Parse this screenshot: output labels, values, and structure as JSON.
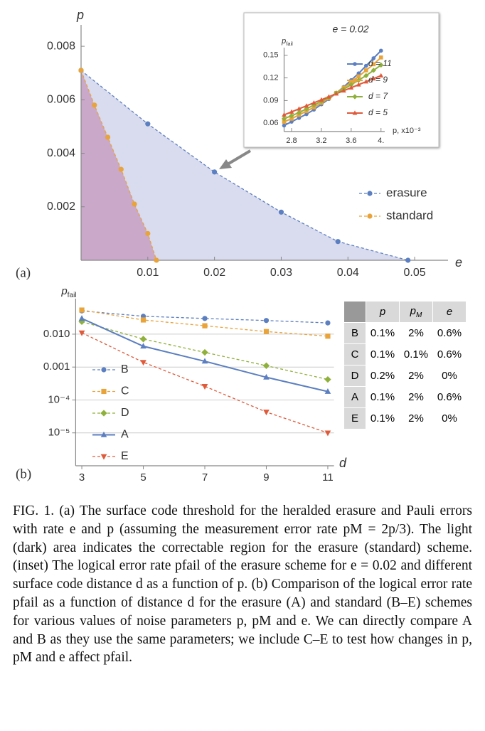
{
  "panel_labels": [
    "(a)",
    "(b)"
  ],
  "chart_data": [
    {
      "type": "area",
      "x_label": "e",
      "y_label": "p",
      "xlim": [
        0,
        0.055
      ],
      "ylim": [
        0,
        0.0088
      ],
      "xticks": [
        0.01,
        0.02,
        0.03,
        0.04,
        0.05
      ],
      "yticks": [
        0.002,
        0.004,
        0.006,
        0.008
      ],
      "legend": "right",
      "series": [
        {
          "name": "erasure",
          "color": "#5b7fc0",
          "fill": "#d9dbef",
          "marker": "circle",
          "dash": true,
          "x": [
            0,
            0.01,
            0.02,
            0.03,
            0.0385,
            0.049
          ],
          "values": [
            0.0071,
            0.0051,
            0.0033,
            0.0018,
            0.0007,
            0
          ]
        },
        {
          "name": "standard",
          "color": "#e8a33a",
          "fill": "#c9a8c9",
          "marker": "circle",
          "dash": true,
          "x": [
            0,
            0.002,
            0.004,
            0.006,
            0.008,
            0.01,
            0.0113
          ],
          "values": [
            0.0071,
            0.0058,
            0.0046,
            0.0034,
            0.0021,
            0.001,
            0
          ]
        }
      ]
    },
    {
      "type": "line",
      "title": "e = 0.02",
      "x_label": "p, x10⁻³",
      "y_label": {
        "base": "p",
        "sub": "fail"
      },
      "x": [
        2.7,
        2.8,
        2.9,
        3.0,
        3.1,
        3.2,
        3.3,
        3.4,
        3.5,
        3.6,
        3.7,
        3.8,
        3.9,
        4.0
      ],
      "xlim": [
        2.7,
        4.05
      ],
      "ylim": [
        0.049,
        0.16
      ],
      "xticks": [
        2.8,
        3.2,
        3.6,
        {
          "value": 4,
          "label": "4."
        }
      ],
      "yticks": [
        0.06,
        0.09,
        0.12,
        0.15
      ],
      "legend": "right",
      "series": [
        {
          "name": "d = 11",
          "color": "#5b7fc0",
          "marker": "circle",
          "dash": false,
          "values": [
            0.057,
            0.062,
            0.067,
            0.072,
            0.078,
            0.085,
            0.092,
            0.1,
            0.108,
            0.117,
            0.126,
            0.136,
            0.146,
            0.156
          ]
        },
        {
          "name": "d = 9",
          "color": "#e8a33a",
          "marker": "square",
          "dash": false,
          "values": [
            0.062,
            0.066,
            0.071,
            0.076,
            0.081,
            0.087,
            0.093,
            0.1,
            0.107,
            0.114,
            0.122,
            0.13,
            0.138,
            0.147
          ]
        },
        {
          "name": "d = 7",
          "color": "#8fb03a",
          "marker": "diamond",
          "dash": false,
          "values": [
            0.066,
            0.07,
            0.074,
            0.079,
            0.084,
            0.089,
            0.094,
            0.1,
            0.105,
            0.111,
            0.117,
            0.123,
            0.13,
            0.137
          ]
        },
        {
          "name": "d = 5",
          "color": "#e05a3a",
          "marker": "triangle",
          "dash": false,
          "values": [
            0.071,
            0.075,
            0.079,
            0.083,
            0.087,
            0.091,
            0.095,
            0.099,
            0.103,
            0.107,
            0.111,
            0.115,
            0.119,
            0.123
          ]
        }
      ]
    },
    {
      "type": "line",
      "yscale": "log",
      "grid": true,
      "x_label": "d",
      "y_label": {
        "base": "p",
        "sub": "fail"
      },
      "x": [
        3,
        5,
        7,
        9,
        11
      ],
      "xticks": [
        3,
        5,
        7,
        9,
        11
      ],
      "xlim": [
        2.8,
        11.2
      ],
      "ylim": [
        1e-06,
        0.12
      ],
      "yticks": [
        {
          "value": 0.01,
          "label": "0.010"
        },
        0.001,
        {
          "value": 0.0001,
          "label": "10⁻⁴"
        },
        {
          "value": 1e-05,
          "label": "10⁻⁵"
        }
      ],
      "legend": "left",
      "series": [
        {
          "name": "B",
          "color": "#5b7fc0",
          "marker": "circle",
          "dash": true,
          "values": [
            0.051,
            0.035,
            0.03,
            0.026,
            0.022
          ]
        },
        {
          "name": "C",
          "color": "#e8a33a",
          "marker": "square",
          "dash": true,
          "values": [
            0.054,
            0.027,
            0.018,
            0.012,
            0.0087
          ]
        },
        {
          "name": "D",
          "color": "#8fb03a",
          "marker": "diamond",
          "dash": true,
          "values": [
            0.024,
            0.0071,
            0.0028,
            0.0011,
            0.00042
          ]
        },
        {
          "name": "A",
          "color": "#5b7fc0",
          "marker": "triangle",
          "dash": false,
          "values": [
            0.03,
            0.0043,
            0.0015,
            0.00049,
            0.00018
          ]
        },
        {
          "name": "E",
          "color": "#e05a3a",
          "marker": "triangle-down",
          "dash": true,
          "values": [
            0.011,
            0.0014,
            0.00026,
            4.3e-05,
            1e-05
          ]
        }
      ]
    }
  ],
  "table": {
    "columns": [
      "p",
      {
        "base": "p",
        "sub": "M"
      },
      "e"
    ],
    "rows": [
      [
        "B",
        "0.1%",
        "2%",
        "0.6%"
      ],
      [
        "C",
        "0.1%",
        "0.1%",
        "0.6%"
      ],
      [
        "D",
        "0.2%",
        "2%",
        "0%"
      ],
      [
        "A",
        "0.1%",
        "2%",
        "0.6%"
      ],
      [
        "E",
        "0.1%",
        "2%",
        "0%"
      ]
    ]
  },
  "caption": "FIG. 1.   (a) The surface code threshold for the heralded erasure and Pauli errors with rate e and p (assuming the measurement error rate pM = 2p/3). The light (dark) area indicates the correctable region for the erasure (standard) scheme. (inset) The logical error rate pfail of the erasure scheme for e = 0.02 and different surface code distance d as a function of p. (b) Comparison of the logical error rate pfail as a function of distance d for the erasure (A) and standard (B–E) schemes for various values of noise parameters p, pM and e. We can directly compare A and B as they use the same parameters; we include C–E to test how changes in p, pM and e affect pfail."
}
